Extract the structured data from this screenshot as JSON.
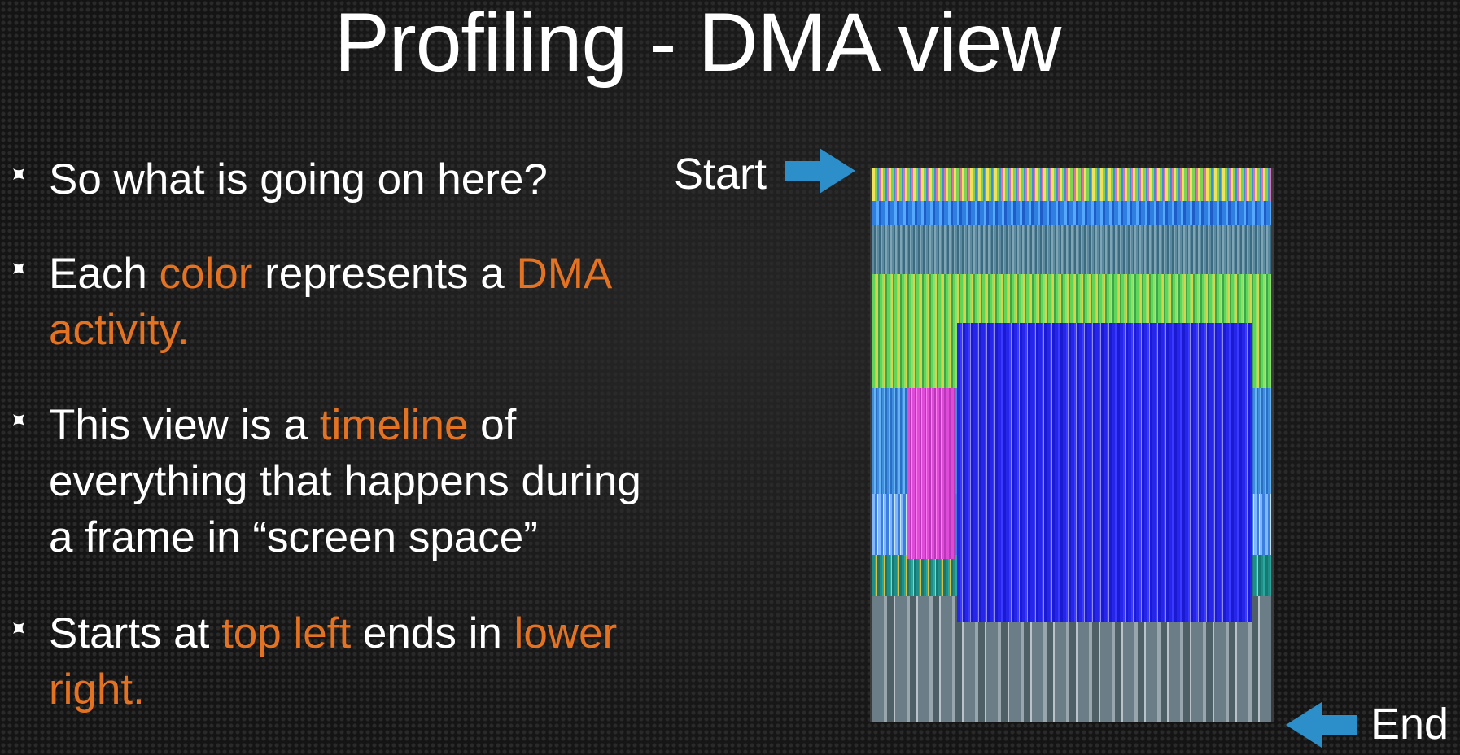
{
  "slide": {
    "title": "Profiling - DMA view"
  },
  "bullets": [
    {
      "parts": [
        {
          "text": "So what is going on here?",
          "highlight": false
        }
      ]
    },
    {
      "parts": [
        {
          "text": "Each ",
          "highlight": false
        },
        {
          "text": "color",
          "highlight": true
        },
        {
          "text": " represents a ",
          "highlight": false
        },
        {
          "text": "DMA",
          "highlight": true
        },
        {
          "text": "\nactivity.",
          "highlight": true
        }
      ]
    },
    {
      "parts": [
        {
          "text": "This view is a ",
          "highlight": false
        },
        {
          "text": "timeline",
          "highlight": true
        },
        {
          "text": " of\neverything that happens during\na frame in “screen space”",
          "highlight": false
        }
      ]
    },
    {
      "parts": [
        {
          "text": "Starts at ",
          "highlight": false
        },
        {
          "text": "top left",
          "highlight": true
        },
        {
          "text": " ends in ",
          "highlight": false
        },
        {
          "text": "lower",
          "highlight": true
        },
        {
          "text": "\nright.",
          "highlight": true
        }
      ]
    }
  ],
  "annotations": {
    "start_label": "Start",
    "end_label": "End",
    "arrow_icon": "arrow-icon"
  },
  "colors": {
    "highlight": "#e37322",
    "text": "#ffffff",
    "arrow": "#2c8fc9",
    "bullet_mark": "#ffffff"
  }
}
